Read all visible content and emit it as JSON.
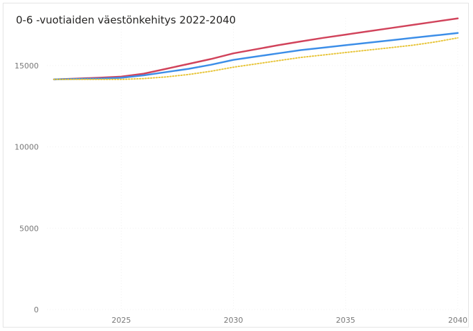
{
  "chart_data": {
    "type": "line",
    "title": "0-6 -vuotiaiden väestönkehitys 2022-2040",
    "xlabel": "",
    "ylabel": "",
    "x": [
      2022,
      2023,
      2024,
      2025,
      2026,
      2027,
      2028,
      2029,
      2030,
      2031,
      2032,
      2033,
      2034,
      2035,
      2036,
      2037,
      2038,
      2039,
      2040
    ],
    "xlim": [
      2022,
      2040
    ],
    "ylim": [
      0,
      17500
    ],
    "xticks": [
      2025,
      2030,
      2035,
      2040
    ],
    "yticks": [
      0,
      5000,
      10000,
      15000
    ],
    "grid": true,
    "legend": "none",
    "series": [
      {
        "color": "#d1435b",
        "style": "solid",
        "values": [
          14150,
          14200,
          14250,
          14320,
          14500,
          14800,
          15100,
          15400,
          15750,
          16000,
          16250,
          16480,
          16700,
          16900,
          17100,
          17300,
          17500,
          17700,
          17900
        ]
      },
      {
        "color": "#3c8ee8",
        "style": "solid",
        "values": [
          14150,
          14180,
          14200,
          14250,
          14400,
          14600,
          14800,
          15050,
          15350,
          15550,
          15750,
          15950,
          16100,
          16250,
          16400,
          16550,
          16700,
          16850,
          17000
        ]
      },
      {
        "color": "#e8c53a",
        "style": "dotted",
        "values": [
          14150,
          14150,
          14150,
          14150,
          14200,
          14300,
          14450,
          14650,
          14900,
          15100,
          15300,
          15500,
          15650,
          15800,
          15950,
          16100,
          16250,
          16450,
          16700
        ]
      }
    ]
  }
}
